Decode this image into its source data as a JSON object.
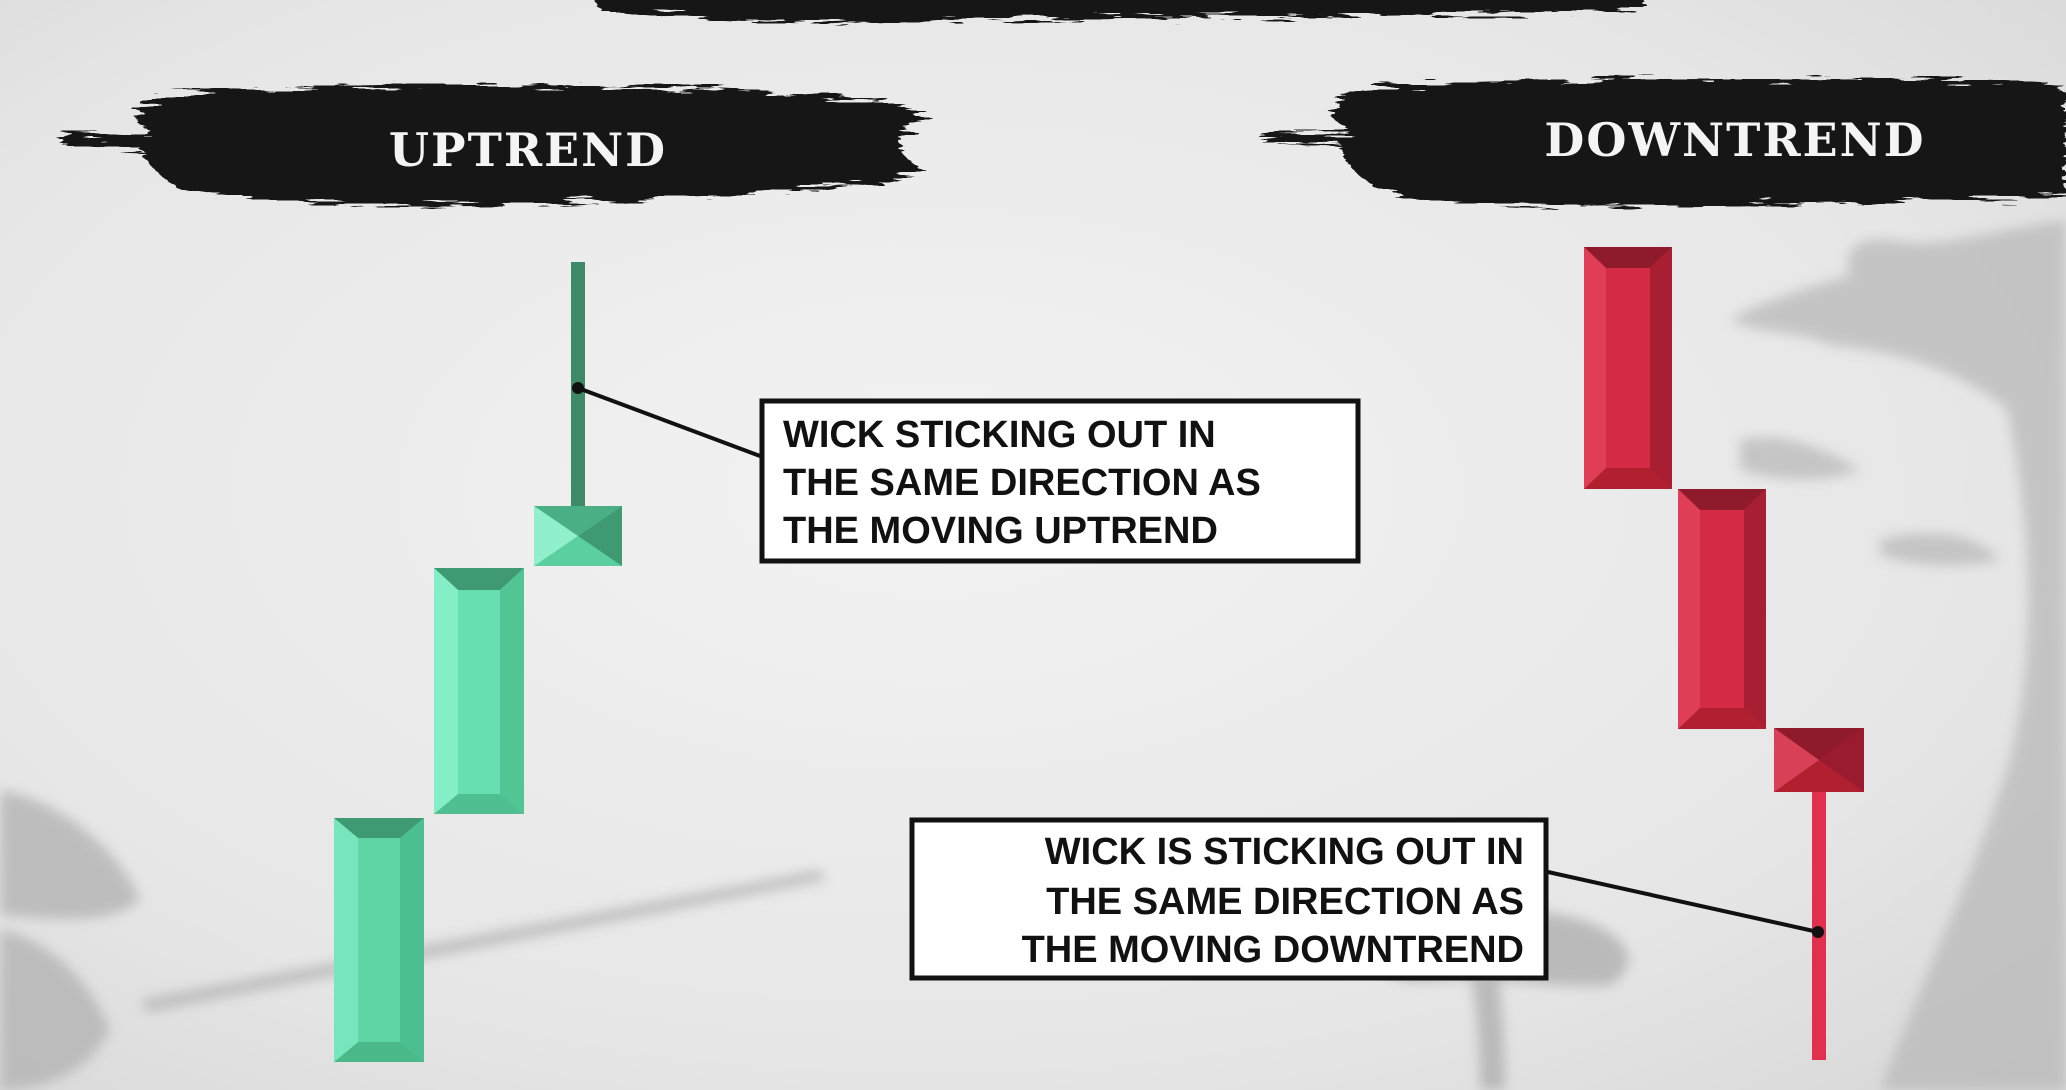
{
  "headings": {
    "uptrend": "UPTREND",
    "downtrend": "DOWNTREND"
  },
  "callouts": {
    "uptrend": {
      "lines": [
        "WICK STICKING OUT IN",
        "THE SAME DIRECTION AS",
        "THE MOVING UPTREND"
      ]
    },
    "downtrend": {
      "lines": [
        "WICK IS STICKING OUT IN",
        "THE SAME DIRECTION AS",
        "THE MOVING DOWNTREND"
      ]
    }
  },
  "colors": {
    "bullish": "#5fd9a8",
    "bullish_wick": "#3f8a66",
    "bearish": "#d92a44",
    "bearish_wick": "#e0304d",
    "ink": "#151515",
    "paper": "#e9e9e9"
  }
}
